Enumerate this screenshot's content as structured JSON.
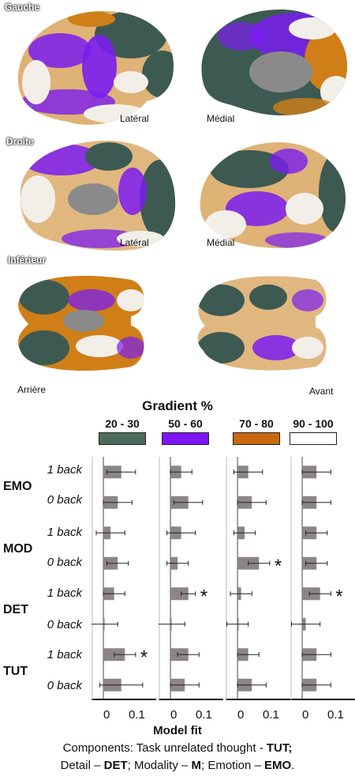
{
  "sections": {
    "left": "Gauche",
    "right": "Droite",
    "inferior": "Inférieur"
  },
  "views": {
    "lateral": "Latéral",
    "medial": "Médial",
    "back": "Arrière",
    "front": "Avant"
  },
  "legend": {
    "title": "Gradient %",
    "items": [
      {
        "label": "20 - 30",
        "color": "#4d6b5c"
      },
      {
        "label": "50 - 60",
        "color": "#7d16f5"
      },
      {
        "label": "70 - 80",
        "color": "#c9690f"
      },
      {
        "label": "90 - 100",
        "color": "#ffffff"
      }
    ]
  },
  "brain_colors": {
    "green": "#3d5a52",
    "purple": "#7a1cf0",
    "orange": "#d07f18",
    "white": "#f2efe9",
    "gray": "#8a8a8a"
  },
  "chart_data": {
    "type": "bar",
    "orientation": "horizontal",
    "panels": [
      "20 - 30",
      "50 - 60",
      "70 - 80",
      "90 - 100"
    ],
    "components": [
      {
        "label": "EMO",
        "conditions": [
          "1 back",
          "0 back"
        ]
      },
      {
        "label": "MOD",
        "conditions": [
          "1 back",
          "0 back"
        ]
      },
      {
        "label": "DET",
        "conditions": [
          "1 back",
          "0 back"
        ]
      },
      {
        "label": "TUT",
        "conditions": [
          "1 back",
          "0 back"
        ]
      }
    ],
    "row_labels": [
      "1 back",
      "0 back",
      "1 back",
      "0 back",
      "1 back",
      "0 back",
      "1 back",
      "0 back"
    ],
    "series": [
      {
        "values": [
          0.05,
          0.04,
          0.02,
          0.04,
          0.03,
          0.0,
          0.06,
          0.05
        ],
        "errors": [
          0.04,
          0.04,
          0.04,
          0.03,
          0.03,
          0.04,
          0.03,
          0.06
        ],
        "significant": [
          false,
          false,
          false,
          false,
          false,
          false,
          true,
          false
        ]
      },
      {
        "values": [
          0.03,
          0.05,
          0.03,
          0.02,
          0.05,
          0.0,
          0.05,
          0.04
        ],
        "errors": [
          0.03,
          0.04,
          0.04,
          0.03,
          0.02,
          0.04,
          0.03,
          0.04
        ],
        "significant": [
          false,
          false,
          false,
          false,
          true,
          false,
          false,
          false
        ]
      },
      {
        "values": [
          0.03,
          0.04,
          0.02,
          0.06,
          0.01,
          0.0,
          0.03,
          0.04
        ],
        "errors": [
          0.04,
          0.04,
          0.03,
          0.03,
          0.03,
          0.03,
          0.03,
          0.04
        ],
        "significant": [
          false,
          false,
          false,
          true,
          false,
          false,
          false,
          false
        ]
      },
      {
        "values": [
          0.04,
          0.04,
          0.04,
          0.04,
          0.05,
          0.01,
          0.04,
          0.04
        ],
        "errors": [
          0.04,
          0.04,
          0.03,
          0.03,
          0.03,
          0.04,
          0.04,
          0.04
        ],
        "significant": [
          false,
          false,
          false,
          false,
          true,
          false,
          false,
          false
        ]
      }
    ],
    "xlim": [
      -0.02,
      0.13
    ],
    "xticks": [
      "0",
      "0.1"
    ],
    "xlabel": "Model fit",
    "significance_marker": "*"
  },
  "caption": {
    "line1_prefix": "Components: Task unrelated thought - ",
    "line1_tut": "TUT;",
    "line2_a": "Detail – ",
    "line2_det": "DET",
    "line2_b": "; Modality – ",
    "line2_m": "M",
    "line2_c": "; Emotion – ",
    "line2_emo": "EMO",
    "line2_end": "."
  }
}
